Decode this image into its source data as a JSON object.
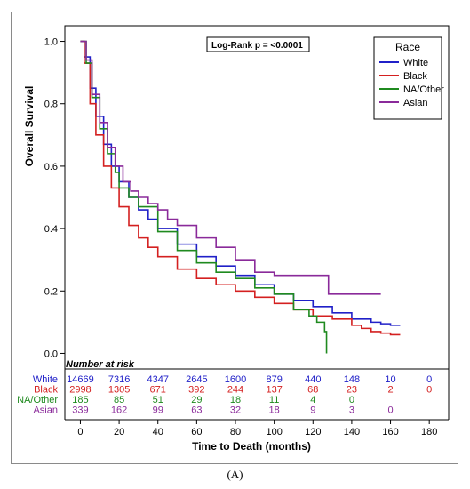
{
  "caption": "(A)",
  "chart_data": {
    "type": "line",
    "xlabel": "Time to Death (months)",
    "ylabel": "Overall Survival",
    "xlim": [
      0,
      180
    ],
    "ylim": [
      0,
      1.0
    ],
    "x_ticks": [
      "0",
      "20",
      "40",
      "60",
      "80",
      "100",
      "120",
      "140",
      "160",
      "180"
    ],
    "y_ticks": [
      "0.0",
      "0.2",
      "0.4",
      "0.6",
      "0.8",
      "1.0"
    ],
    "annotation": "Log-Rank p    = <0.0001",
    "legend_title": "Race",
    "legend_position": "top-right",
    "series": [
      {
        "name": "White",
        "color": "#2020c8",
        "x": [
          0,
          2,
          5,
          8,
          12,
          16,
          20,
          25,
          30,
          35,
          40,
          50,
          60,
          70,
          80,
          90,
          100,
          110,
          120,
          130,
          140,
          150,
          155,
          160,
          165
        ],
        "values": [
          1.0,
          0.95,
          0.85,
          0.76,
          0.67,
          0.6,
          0.55,
          0.5,
          0.46,
          0.43,
          0.4,
          0.35,
          0.31,
          0.28,
          0.25,
          0.22,
          0.19,
          0.17,
          0.15,
          0.13,
          0.11,
          0.1,
          0.095,
          0.09,
          0.09
        ]
      },
      {
        "name": "Black",
        "color": "#d42020",
        "x": [
          0,
          2,
          5,
          8,
          12,
          16,
          20,
          25,
          30,
          35,
          40,
          50,
          60,
          70,
          80,
          90,
          100,
          110,
          120,
          130,
          140,
          145,
          150,
          155,
          160,
          165
        ],
        "values": [
          1.0,
          0.93,
          0.8,
          0.7,
          0.6,
          0.53,
          0.47,
          0.41,
          0.37,
          0.34,
          0.31,
          0.27,
          0.24,
          0.22,
          0.2,
          0.18,
          0.16,
          0.14,
          0.12,
          0.11,
          0.09,
          0.08,
          0.07,
          0.065,
          0.06,
          0.06
        ]
      },
      {
        "name": "NA/Other",
        "color": "#1f8a1f",
        "x": [
          0,
          3,
          6,
          10,
          14,
          18,
          20,
          25,
          30,
          40,
          50,
          60,
          70,
          80,
          90,
          100,
          110,
          118,
          122,
          126,
          127
        ],
        "values": [
          1.0,
          0.93,
          0.82,
          0.72,
          0.64,
          0.58,
          0.53,
          0.5,
          0.47,
          0.39,
          0.33,
          0.29,
          0.26,
          0.24,
          0.21,
          0.19,
          0.14,
          0.12,
          0.1,
          0.07,
          0.0
        ]
      },
      {
        "name": "Asian",
        "color": "#8a2a9a",
        "x": [
          0,
          3,
          6,
          10,
          14,
          18,
          22,
          26,
          30,
          35,
          40,
          45,
          50,
          60,
          70,
          80,
          90,
          100,
          110,
          115,
          120,
          128,
          136,
          145,
          155
        ],
        "values": [
          1.0,
          0.94,
          0.83,
          0.74,
          0.66,
          0.6,
          0.55,
          0.52,
          0.5,
          0.48,
          0.46,
          0.43,
          0.41,
          0.37,
          0.34,
          0.3,
          0.26,
          0.25,
          0.25,
          0.25,
          0.25,
          0.19,
          0.19,
          0.19,
          0.19
        ]
      }
    ],
    "risk_table": {
      "title": "Number at risk",
      "times": [
        0,
        20,
        40,
        60,
        80,
        100,
        120,
        140,
        160,
        180
      ],
      "rows": [
        {
          "name": "White",
          "color": "#2020c8",
          "values": [
            "14669",
            "7316",
            "4347",
            "2645",
            "1600",
            "879",
            "440",
            "148",
            "10",
            "0"
          ]
        },
        {
          "name": "Black",
          "color": "#d42020",
          "values": [
            "2998",
            "1305",
            "671",
            "392",
            "244",
            "137",
            "68",
            "23",
            "2",
            "0"
          ]
        },
        {
          "name": "NA/Other",
          "color": "#1f8a1f",
          "values": [
            "185",
            "85",
            "51",
            "29",
            "18",
            "11",
            "4",
            "0"
          ]
        },
        {
          "name": "Asian",
          "color": "#8a2a9a",
          "values": [
            "339",
            "162",
            "99",
            "63",
            "32",
            "18",
            "9",
            "3",
            "0"
          ]
        }
      ]
    }
  }
}
